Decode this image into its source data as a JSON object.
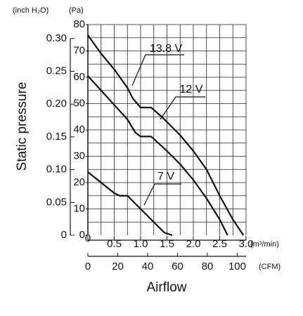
{
  "chart_data": {
    "type": "line",
    "y_axis_label": "Static pressure",
    "x_axis_label": "Airflow",
    "y_unit": "(Pa)",
    "y2_unit": "(inch H₂O)",
    "x_unit": "(m³/min)",
    "x2_unit": "(CFM)",
    "xlim": [
      0,
      3.0
    ],
    "xticks": [
      0,
      0.5,
      {
        "value": 1.0,
        "label": "1.0"
      },
      1.5,
      {
        "value": 2.0,
        "label": "2.0"
      },
      2.5,
      {
        "value": 3.0,
        "label": "3.0"
      }
    ],
    "ylim": [
      0,
      80
    ],
    "yticks": [
      0,
      10,
      20,
      30,
      40,
      50,
      60,
      70,
      80
    ],
    "y2lim": [
      0,
      0.3213
    ],
    "y2ticks": [
      0,
      0.05,
      {
        "value": 0.1,
        "label": "0.10"
      },
      0.15,
      {
        "value": 0.2,
        "label": "0.20"
      },
      0.25,
      {
        "value": 0.3,
        "label": "0.30"
      }
    ],
    "x2lim": [
      0,
      105.9
    ],
    "x2ticks": [
      0,
      20,
      40,
      60,
      80,
      100
    ],
    "grid": true,
    "xgrid": [
      0.25,
      0.5,
      0.75,
      1.0,
      1.25,
      1.5,
      1.75,
      2.0,
      2.25,
      2.5,
      2.75,
      3.0
    ],
    "ygrid": [
      5,
      10,
      15,
      20,
      25,
      30,
      35,
      40,
      45,
      50,
      55,
      60,
      65,
      70,
      75,
      80
    ],
    "series": [
      {
        "name": "13.8 V",
        "color": "#111111",
        "x": [
          0,
          0.25,
          0.5,
          0.75,
          0.85,
          1.0,
          1.2,
          1.4,
          1.75,
          2.0,
          2.25,
          2.5,
          2.75,
          2.95
        ],
        "values": [
          76,
          69,
          63,
          56,
          52,
          48.5,
          48.5,
          45,
          38,
          32,
          25,
          15,
          6,
          0
        ]
      },
      {
        "name": "12 V",
        "color": "#111111",
        "x": [
          0,
          0.25,
          0.5,
          0.75,
          0.9,
          1.0,
          1.2,
          1.5,
          1.75,
          2.0,
          2.25,
          2.5,
          2.65
        ],
        "values": [
          60.5,
          55,
          49.5,
          44,
          39,
          37.5,
          37.5,
          32,
          27,
          21,
          14,
          6,
          0
        ]
      },
      {
        "name": "7 V",
        "color": "#111111",
        "x": [
          0,
          0.25,
          0.5,
          0.6,
          0.75,
          1.0,
          1.25,
          1.45,
          1.6
        ],
        "values": [
          24,
          20,
          16,
          15,
          15,
          10,
          5,
          1,
          0
        ]
      }
    ]
  }
}
